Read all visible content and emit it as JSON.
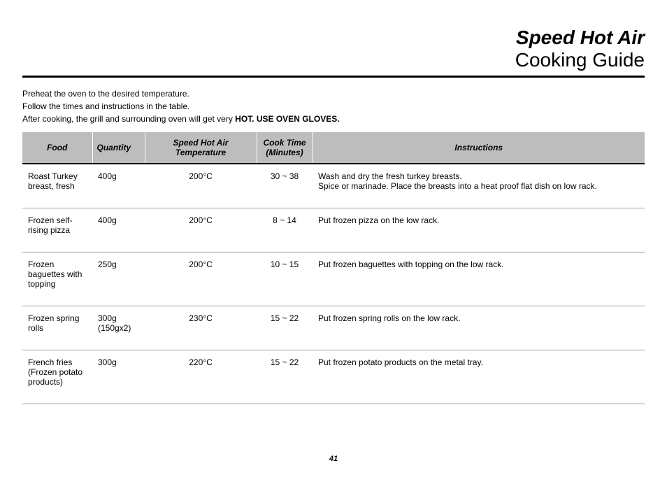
{
  "title": {
    "bold": "Speed Hot Air",
    "light": "Cooking Guide"
  },
  "intro": {
    "line1": "Preheat the oven to the desired temperature.",
    "line2": "Follow the times and instructions in the table.",
    "line3_a": "After cooking, the grill and surrounding oven will get very ",
    "line3_b": "HOT. USE OVEN GLOVES."
  },
  "table": {
    "headers": {
      "food": "Food",
      "qty": "Quantity",
      "temp": "Speed Hot Air Temperature",
      "time": "Cook Time (Minutes)",
      "inst": "Instructions"
    },
    "rows": [
      {
        "food": "Roast Turkey breast, fresh",
        "qty": "400g",
        "temp": "200°C",
        "time": "30 ~ 38",
        "inst": "Wash and dry the fresh turkey breasts.\nSpice or marinade. Place the breasts into a heat proof flat dish on low rack."
      },
      {
        "food": "Frozen self-rising pizza",
        "qty": "400g",
        "temp": "200°C",
        "time": "8 ~ 14",
        "inst": "Put frozen pizza on the low rack."
      },
      {
        "food": "Frozen baguettes with topping",
        "qty": "250g",
        "temp": "200°C",
        "time": "10 ~ 15",
        "inst": "Put frozen baguettes with topping on the low rack."
      },
      {
        "food": "Frozen spring rolls",
        "qty": "300g (150gx2)",
        "temp": "230°C",
        "time": "15 ~ 22",
        "inst": "Put frozen spring rolls on the low rack."
      },
      {
        "food": "French fries (Frozen potato products)",
        "qty": "300g",
        "temp": "220°C",
        "time": "15 ~ 22",
        "inst": "Put frozen potato products on the metal tray."
      }
    ]
  },
  "page_number": "41",
  "colors": {
    "header_bg": "#bdbdbd",
    "rule": "#000000",
    "row_border": "#9a9a9a",
    "text": "#000000",
    "bg": "#ffffff"
  },
  "fonts": {
    "title_size": 28,
    "body_size": 12,
    "pagenum_size": 11
  }
}
